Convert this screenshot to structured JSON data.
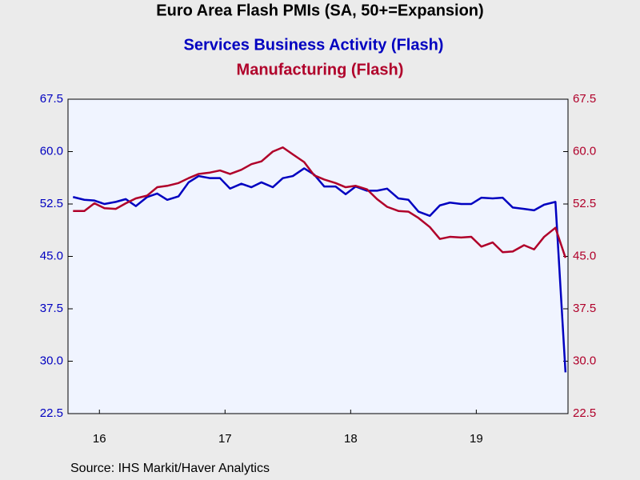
{
  "chart_data": {
    "type": "line",
    "title": "Euro Area Flash PMIs (SA, 50+=Expansion)",
    "source": "Source:  IHS Markit/Haver Analytics",
    "x": [
      2016.29,
      2016.38,
      2016.46,
      2016.54,
      2016.63,
      2016.71,
      2016.79,
      2016.88,
      2016.96,
      2017.04,
      2017.13,
      2017.21,
      2017.29,
      2017.38,
      2017.46,
      2017.54,
      2017.63,
      2017.71,
      2017.79,
      2017.88,
      2017.96,
      2018.04,
      2018.13,
      2018.21,
      2018.29,
      2018.38,
      2018.46,
      2018.54,
      2018.63,
      2018.71,
      2018.79,
      2018.88,
      2018.96,
      2019.04,
      2019.13,
      2019.21,
      2019.29,
      2019.38,
      2019.46,
      2019.54,
      2019.63,
      2019.71,
      2019.79,
      2019.88,
      2019.96,
      2020.04,
      2020.13,
      2020.21
    ],
    "xlim": [
      2016.25,
      2020.23
    ],
    "xticks": [
      {
        "value": 2016.5,
        "label": "16"
      },
      {
        "value": 2017.5,
        "label": "17"
      },
      {
        "value": 2018.5,
        "label": "18"
      },
      {
        "value": 2019.5,
        "label": "19"
      }
    ],
    "ylim": [
      22.5,
      67.5
    ],
    "yticks": [
      22.5,
      {
        "value": 30,
        "label": "30.0"
      },
      37.5,
      {
        "value": 45,
        "label": "45.0"
      },
      52.5,
      {
        "value": 60,
        "label": "60.0"
      },
      67.5
    ],
    "y2lim": [
      22.5,
      67.5
    ],
    "y2ticks": [
      22.5,
      {
        "value": 30,
        "label": "30.0"
      },
      37.5,
      {
        "value": 45,
        "label": "45.0"
      },
      52.5,
      {
        "value": 60,
        "label": "60.0"
      },
      67.5
    ],
    "series": [
      {
        "name": "Services Business Activity (Flash)",
        "color": "#0000c0",
        "values": [
          53.5,
          53.1,
          53.0,
          52.5,
          52.8,
          53.2,
          52.2,
          53.5,
          54.0,
          53.1,
          53.6,
          55.6,
          56.5,
          56.2,
          56.2,
          54.7,
          55.4,
          54.9,
          55.6,
          54.9,
          56.2,
          56.5,
          57.6,
          56.7,
          55.0,
          55.0,
          53.9,
          55.0,
          54.4,
          54.4,
          54.7,
          53.3,
          53.1,
          51.4,
          50.8,
          52.3,
          52.7,
          52.5,
          52.5,
          53.4,
          53.3,
          53.4,
          52.0,
          51.8,
          51.6,
          52.4,
          52.8,
          28.4
        ]
      },
      {
        "name": "Manufacturing (Flash)",
        "color": "#b0002a",
        "axis": "y2",
        "values": [
          51.5,
          51.5,
          52.6,
          51.9,
          51.8,
          52.6,
          53.3,
          53.7,
          54.9,
          55.1,
          55.5,
          56.2,
          56.8,
          57.0,
          57.3,
          56.8,
          57.4,
          58.2,
          58.6,
          60.0,
          60.6,
          59.6,
          58.5,
          56.6,
          56.0,
          55.5,
          54.9,
          55.1,
          54.6,
          53.2,
          52.1,
          51.5,
          51.4,
          50.5,
          49.2,
          47.5,
          47.8,
          47.7,
          47.8,
          46.4,
          47.0,
          45.6,
          45.7,
          46.6,
          46.0,
          47.8,
          49.1,
          44.8
        ]
      }
    ]
  }
}
